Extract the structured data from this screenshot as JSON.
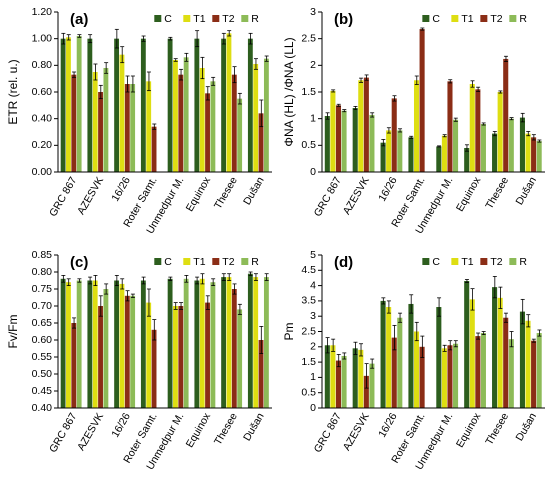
{
  "chart_data": [
    {
      "type": "bar",
      "panel_label": "(a)",
      "y_label": "ETR (rel. u.)",
      "categories": [
        "GRC 867",
        "AZESVK",
        "16/26",
        "Roter Samt.",
        "Unmedpur M.",
        "Equinox",
        "Thesee",
        "Dušan"
      ],
      "ylim": [
        0,
        1.2
      ],
      "yticks": [
        {
          "value": 0,
          "label": "0.00"
        },
        {
          "value": 0.2,
          "label": "0.20"
        },
        {
          "value": 0.4,
          "label": "0.40"
        },
        {
          "value": 0.6,
          "label": "0.60"
        },
        {
          "value": 0.8,
          "label": "0.80"
        },
        {
          "value": 1,
          "label": "1.00"
        },
        {
          "value": 1.2,
          "label": "1.20"
        }
      ],
      "series": [
        {
          "name": "C",
          "color": "#2d5e1e",
          "values": [
            1.0,
            1.0,
            1.0,
            1.0,
            1.0,
            1.0,
            1.0,
            1.0
          ],
          "errors": [
            0.04,
            0.03,
            0.07,
            0.02,
            0.01,
            0.06,
            0.04,
            0.04
          ]
        },
        {
          "name": "T1",
          "color": "#dede12",
          "values": [
            1.01,
            0.75,
            0.88,
            0.68,
            0.84,
            0.78,
            1.04,
            0.81
          ],
          "errors": [
            0.02,
            0.06,
            0.06,
            0.07,
            0.01,
            0.08,
            0.02,
            0.04
          ]
        },
        {
          "name": "T2",
          "color": "#8b2d16",
          "values": [
            0.73,
            0.6,
            0.66,
            0.34,
            0.73,
            0.59,
            0.73,
            0.44
          ],
          "errors": [
            0.02,
            0.05,
            0.06,
            0.02,
            0.04,
            0.05,
            0.06,
            0.1
          ]
        },
        {
          "name": "R",
          "color": "#8dbb58",
          "values": [
            1.02,
            0.78,
            0.66,
            null,
            0.86,
            0.68,
            0.55,
            0.85
          ],
          "errors": [
            0.01,
            0.04,
            0.06,
            null,
            0.03,
            0.03,
            0.04,
            0.02
          ]
        }
      ]
    },
    {
      "type": "bar",
      "panel_label": "(b)",
      "y_label": "ΦNA (HL) /ΦNA (LL)",
      "categories": [
        "GRC 867",
        "AZESVK",
        "16/26",
        "Roter Samt.",
        "Unmedpur M.",
        "Equinox",
        "Thesee",
        "Dušan"
      ],
      "ylim": [
        0,
        3
      ],
      "yticks": [
        0,
        0.5,
        1,
        1.5,
        2,
        2.5,
        3
      ],
      "series": [
        {
          "name": "C",
          "color": "#2d5e1e",
          "values": [
            1.05,
            1.2,
            0.55,
            0.65,
            0.48,
            0.45,
            0.72,
            1.02
          ],
          "errors": [
            0.06,
            0.03,
            0.06,
            0.02,
            0.01,
            0.06,
            0.04,
            0.08
          ]
        },
        {
          "name": "T1",
          "color": "#dede12",
          "values": [
            1.52,
            1.72,
            0.78,
            1.72,
            0.68,
            1.65,
            1.5,
            0.72
          ],
          "errors": [
            0.02,
            0.04,
            0.05,
            0.08,
            0.02,
            0.06,
            0.02,
            0.04
          ]
        },
        {
          "name": "T2",
          "color": "#8b2d16",
          "values": [
            1.25,
            1.77,
            1.38,
            2.68,
            1.7,
            1.55,
            2.12,
            0.65
          ],
          "errors": [
            0.02,
            0.05,
            0.05,
            0.02,
            0.03,
            0.04,
            0.05,
            0.05
          ]
        },
        {
          "name": "R",
          "color": "#8dbb58",
          "values": [
            1.15,
            1.07,
            0.78,
            null,
            0.98,
            0.9,
            1.0,
            0.58
          ],
          "errors": [
            0.02,
            0.04,
            0.03,
            null,
            0.03,
            0.02,
            0.02,
            0.02
          ]
        }
      ]
    },
    {
      "type": "bar",
      "panel_label": "(c)",
      "y_label": "Fv/Fm",
      "categories": [
        "GRC 867",
        "AZESVK",
        "16/26",
        "Roter Samt.",
        "Unmedpur M.",
        "Equinox",
        "Thesee",
        "Dušan"
      ],
      "ylim": [
        0.4,
        0.85
      ],
      "yticks": [
        {
          "value": 0.4,
          "label": "0.40"
        },
        0.45,
        {
          "value": 0.5,
          "label": "0.50"
        },
        0.55,
        {
          "value": 0.6,
          "label": "0.60"
        },
        0.65,
        {
          "value": 0.7,
          "label": "0.70"
        },
        0.75,
        {
          "value": 0.8,
          "label": "0.80"
        },
        0.85
      ],
      "series": [
        {
          "name": "C",
          "color": "#2d5e1e",
          "values": [
            0.78,
            0.775,
            0.775,
            0.775,
            0.78,
            0.775,
            0.785,
            0.795
          ],
          "errors": [
            0.01,
            0.01,
            0.015,
            0.01,
            0.005,
            0.01,
            0.01,
            0.005
          ]
        },
        {
          "name": "T1",
          "color": "#dede12",
          "values": [
            0.77,
            0.775,
            0.765,
            0.71,
            0.7,
            0.78,
            0.785,
            0.785
          ],
          "errors": [
            0.01,
            0.015,
            0.015,
            0.04,
            0.01,
            0.015,
            0.01,
            0.01
          ]
        },
        {
          "name": "T2",
          "color": "#8b2d16",
          "values": [
            0.65,
            0.7,
            0.73,
            0.63,
            0.7,
            0.71,
            0.75,
            0.6
          ],
          "errors": [
            0.015,
            0.03,
            0.015,
            0.03,
            0.01,
            0.02,
            0.015,
            0.04
          ]
        },
        {
          "name": "R",
          "color": "#8dbb58",
          "values": [
            0.775,
            0.75,
            0.73,
            null,
            0.78,
            0.77,
            0.69,
            0.785
          ],
          "errors": [
            0.005,
            0.015,
            0.005,
            null,
            0.01,
            0.01,
            0.015,
            0.01
          ]
        }
      ]
    },
    {
      "type": "bar",
      "panel_label": "(d)",
      "y_label": "Pm",
      "categories": [
        "GRC 867",
        "AZESVK",
        "16/26",
        "Roter Samt.",
        "Unmedpur M.",
        "Equinox",
        "Thesee",
        "Dušan"
      ],
      "ylim": [
        0,
        5
      ],
      "yticks": [
        0,
        0.5,
        1,
        1.5,
        2,
        2.5,
        3,
        3.5,
        4,
        4.5,
        5
      ],
      "series": [
        {
          "name": "C",
          "color": "#2d5e1e",
          "values": [
            2.05,
            1.95,
            3.5,
            3.4,
            3.3,
            4.15,
            3.95,
            3.15
          ],
          "errors": [
            0.25,
            0.2,
            0.1,
            0.3,
            0.3,
            0.05,
            0.35,
            0.4
          ]
        },
        {
          "name": "T1",
          "color": "#dede12",
          "values": [
            2.05,
            1.9,
            3.3,
            2.5,
            1.95,
            3.55,
            3.6,
            2.85
          ],
          "errors": [
            0.2,
            0.2,
            0.2,
            0.3,
            0.1,
            0.35,
            0.35,
            0.2
          ]
        },
        {
          "name": "T2",
          "color": "#8b2d16",
          "values": [
            1.55,
            1.05,
            2.3,
            2.0,
            2.05,
            2.35,
            2.95,
            2.2
          ],
          "errors": [
            0.2,
            0.4,
            0.4,
            0.35,
            0.15,
            0.1,
            0.15,
            0.05
          ]
        },
        {
          "name": "R",
          "color": "#8dbb58",
          "values": [
            1.7,
            1.45,
            2.95,
            null,
            2.1,
            2.45,
            2.25,
            2.45
          ],
          "errors": [
            0.1,
            0.15,
            0.15,
            null,
            0.1,
            0.05,
            0.25,
            0.1
          ]
        }
      ]
    }
  ]
}
